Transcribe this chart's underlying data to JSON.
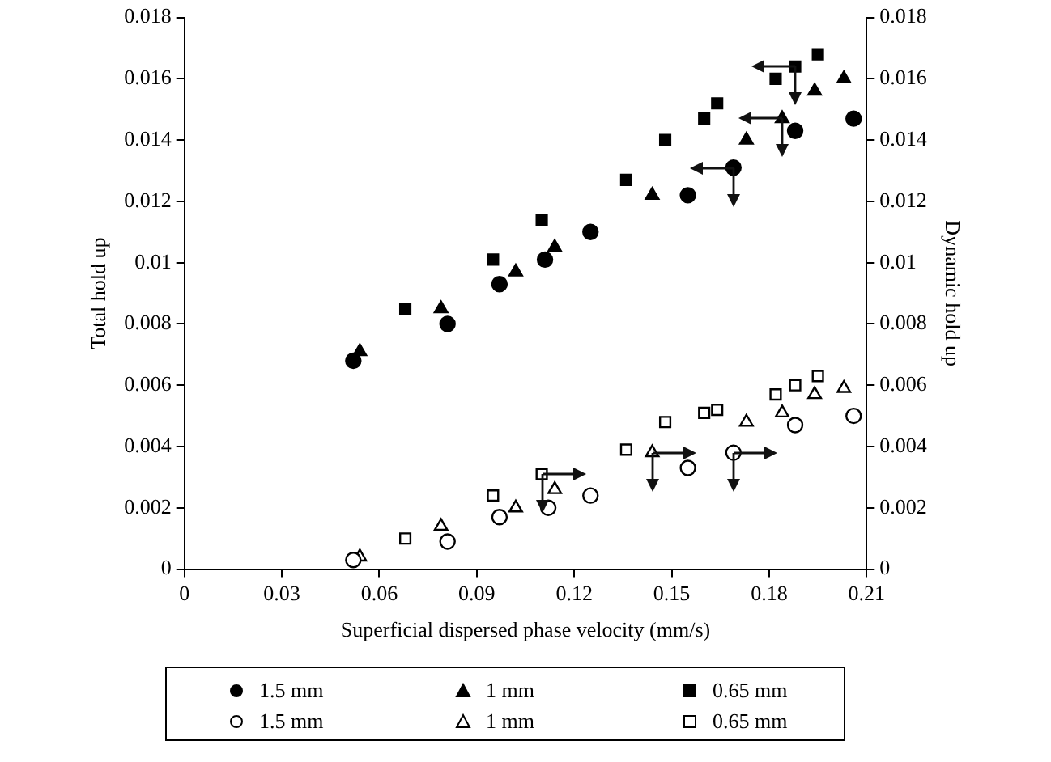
{
  "chart_data": {
    "type": "scatter",
    "xlabel": "Superficial dispersed phase velocity (mm/s)",
    "ylabel": "Total hold up",
    "y2label": "Dynamic hold up",
    "xlim": [
      0,
      0.21
    ],
    "xticks": [
      0,
      0.03,
      0.06,
      0.09,
      0.12,
      0.15,
      0.18,
      0.21
    ],
    "ylim": [
      0,
      0.018
    ],
    "yticks": [
      0,
      0.002,
      0.004,
      0.006,
      0.008,
      0.01,
      0.012,
      0.014,
      0.016,
      0.018
    ],
    "y2lim": [
      0,
      0.018
    ],
    "y2ticks": [
      0,
      0.002,
      0.004,
      0.006,
      0.008,
      0.01,
      0.012,
      0.014,
      0.016,
      0.018
    ],
    "legend": "bottom",
    "series": [
      {
        "name": "1.5 mm",
        "color": "#000000",
        "marker": "circle",
        "x": [
          0.052,
          0.081,
          0.097,
          0.111,
          0.125,
          0.155,
          0.169,
          0.188,
          0.206
        ],
        "values": [
          0.0068,
          0.008,
          0.0093,
          0.0101,
          0.011,
          0.0122,
          0.0131,
          0.0143,
          0.0147
        ]
      },
      {
        "name": "1 mm",
        "color": "#000000",
        "marker": "triangle",
        "x": [
          0.054,
          0.079,
          0.102,
          0.114,
          0.144,
          0.173,
          0.184,
          0.194,
          0.203
        ],
        "values": [
          0.0071,
          0.0085,
          0.0097,
          0.0105,
          0.0122,
          0.014,
          0.0147,
          0.0156,
          0.016
        ]
      },
      {
        "name": "0.65 mm",
        "color": "#000000",
        "marker": "square",
        "x": [
          0.068,
          0.095,
          0.11,
          0.136,
          0.148,
          0.16,
          0.164,
          0.182,
          0.188,
          0.195
        ],
        "values": [
          0.0085,
          0.0101,
          0.0114,
          0.0127,
          0.014,
          0.0147,
          0.0152,
          0.016,
          0.0164,
          0.0168
        ]
      },
      {
        "name": "1.5 mm",
        "color": "#000000",
        "marker": "circle",
        "axis": "y2",
        "x": [
          0.052,
          0.081,
          0.097,
          0.112,
          0.125,
          0.155,
          0.169,
          0.188,
          0.206
        ],
        "values": [
          0.0003,
          0.0009,
          0.0017,
          0.002,
          0.0024,
          0.0033,
          0.0038,
          0.0047,
          0.005
        ]
      },
      {
        "name": "1 mm",
        "color": "#000000",
        "marker": "triangle",
        "axis": "y2",
        "x": [
          0.054,
          0.079,
          0.102,
          0.114,
          0.144,
          0.173,
          0.184,
          0.194,
          0.203
        ],
        "values": [
          0.0004,
          0.0014,
          0.002,
          0.0026,
          0.0038,
          0.0048,
          0.0051,
          0.0057,
          0.0059
        ]
      },
      {
        "name": "0.65 mm",
        "color": "#000000",
        "marker": "square",
        "axis": "y2",
        "x": [
          0.068,
          0.095,
          0.11,
          0.136,
          0.148,
          0.16,
          0.164,
          0.182,
          0.188,
          0.195
        ],
        "values": [
          0.001,
          0.0024,
          0.0031,
          0.0039,
          0.0048,
          0.0051,
          0.0052,
          0.0057,
          0.006,
          0.0063
        ]
      }
    ]
  }
}
